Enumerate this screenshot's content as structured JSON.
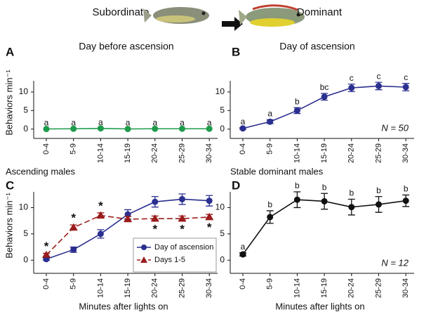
{
  "header": {
    "left_label": "Subordinate",
    "right_label": "Dominant"
  },
  "chart_data": [
    {
      "type": "line",
      "label": "A",
      "title": "Day before ascension",
      "ylabel": "Behaviors min⁻¹",
      "xlabel": "Ascending males",
      "categories": [
        "0-4",
        "5-9",
        "10-14",
        "15-19",
        "20-24",
        "25-29",
        "30-34"
      ],
      "series": [
        {
          "color": "#1e9b4b",
          "marker": "circle",
          "values": [
            0.05,
            0.1,
            0.2,
            0.05,
            0.1,
            0.1,
            0.1
          ],
          "annotations": [
            "a",
            "a",
            "a",
            "a",
            "a",
            "a",
            "a"
          ]
        }
      ],
      "ylim": [
        -2.5,
        13
      ],
      "yticks": [
        0,
        5,
        10
      ]
    },
    {
      "type": "line",
      "label": "B",
      "title": "Day of ascension",
      "xlabel": "Stable dominant males",
      "note": "N = 50",
      "categories": [
        "0-4",
        "5-9",
        "10-14",
        "15-19",
        "20-24",
        "25-29",
        "30-34"
      ],
      "series": [
        {
          "color": "#2b2f8f",
          "marker": "circle",
          "values": [
            0.2,
            2.0,
            5.0,
            8.7,
            11.1,
            11.6,
            11.3
          ],
          "errors": [
            0.2,
            0.5,
            0.8,
            0.9,
            1.0,
            1.0,
            1.0
          ],
          "annotations": [
            "a",
            "a",
            "b",
            "bc",
            "c",
            "c",
            "c"
          ]
        }
      ],
      "ylim": [
        -2.5,
        13
      ],
      "yticks": [
        0,
        5,
        10
      ]
    },
    {
      "type": "line",
      "label": "C",
      "ylabel": "Behaviors min⁻¹",
      "xlabel": "Minutes after lights on",
      "legend": "lower right",
      "categories": [
        "0-4",
        "5-9",
        "10-14",
        "15-19",
        "20-24",
        "25-29",
        "30-34"
      ],
      "series": [
        {
          "name": "Day of ascension",
          "color": "#2b2f8f",
          "marker": "circle",
          "values": [
            0.2,
            2.0,
            5.0,
            8.7,
            11.1,
            11.6,
            11.3
          ],
          "errors": [
            0.2,
            0.5,
            0.8,
            0.9,
            1.0,
            1.0,
            1.0
          ]
        },
        {
          "name": "Days 1-5",
          "color": "#9b1c1c",
          "marker": "triangle",
          "dashed": true,
          "values": [
            1.0,
            6.2,
            8.5,
            7.8,
            7.9,
            7.9,
            8.2
          ],
          "errors": [
            0.3,
            0.5,
            0.5,
            0.5,
            0.5,
            0.5,
            0.5
          ],
          "annotations": [
            "*",
            "*",
            "*",
            null,
            "*",
            "*",
            "*"
          ]
        }
      ],
      "ylim": [
        -2.5,
        13
      ],
      "yticks": [
        0,
        5,
        10
      ]
    },
    {
      "type": "line",
      "label": "D",
      "xlabel": "Minutes after lights on",
      "note": "N = 12",
      "categories": [
        "0-4",
        "5-9",
        "10-14",
        "15-19",
        "20-24",
        "25-29",
        "30-34"
      ],
      "series": [
        {
          "color": "#111111",
          "marker": "circle",
          "values": [
            1.1,
            8.2,
            11.5,
            11.2,
            10.1,
            10.6,
            11.3
          ],
          "errors": [
            0.3,
            1.2,
            1.5,
            1.5,
            1.5,
            1.5,
            1.1
          ],
          "annotations": [
            "a",
            "b",
            "b",
            "b",
            "b",
            "b",
            "b"
          ]
        }
      ],
      "ylim": [
        -2.5,
        13
      ],
      "yticks": [
        0,
        5,
        10
      ]
    }
  ]
}
